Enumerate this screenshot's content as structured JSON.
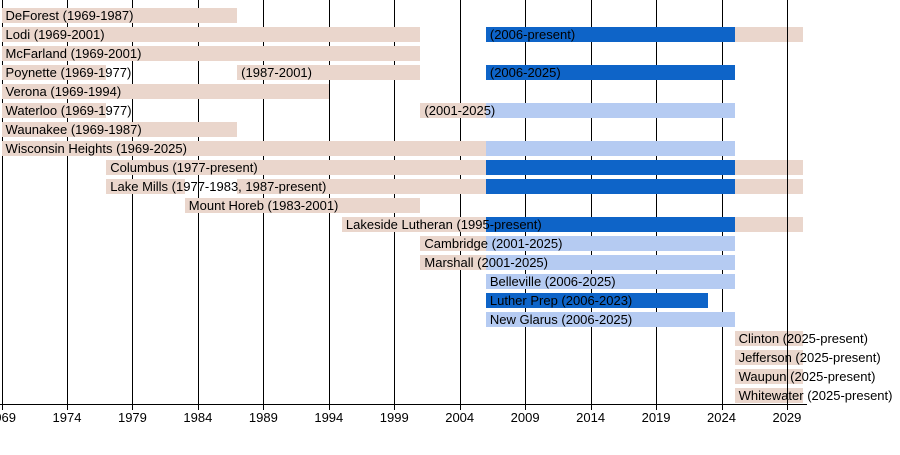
{
  "chart_data": {
    "type": "gantt-timeline",
    "title": "",
    "axis": {
      "unit": "year",
      "start": 1969,
      "axis_end": 2030.5,
      "present_end": 2030.2,
      "ticks": [
        1969,
        1974,
        1979,
        1984,
        1989,
        1994,
        1999,
        2004,
        2009,
        2014,
        2019,
        2024,
        2029
      ],
      "grid": true,
      "tick_labels": [
        "1969",
        "1974",
        "1979",
        "1984",
        "1989",
        "1994",
        "1999",
        "2004",
        "2009",
        "2014",
        "2019",
        "2024",
        "2029"
      ]
    },
    "colors": {
      "tan": "#EAD6CC",
      "darkblue": "#0E64C8",
      "lightblue": "#B5CBF2",
      "grid": "#000000",
      "text": "#000000",
      "background": "#FFFFFF"
    },
    "rows": [
      {
        "name": "DeForest",
        "segments": [
          {
            "start": 1969,
            "end": 1987,
            "color": "tan"
          }
        ],
        "labels": [
          {
            "text": "DeForest (1969-1987)",
            "at": 1969
          }
        ]
      },
      {
        "name": "Lodi",
        "segments": [
          {
            "start": 1969,
            "end": 2001,
            "color": "tan"
          },
          {
            "start": 2006,
            "end": 2025,
            "color": "darkblue"
          },
          {
            "start": 2025,
            "end": 2030.2,
            "color": "tan"
          }
        ],
        "labels": [
          {
            "text": "Lodi (1969-2001)",
            "at": 1969
          },
          {
            "text": "(2006-present)",
            "at": 2006
          }
        ]
      },
      {
        "name": "McFarland",
        "segments": [
          {
            "start": 1969,
            "end": 2001,
            "color": "tan"
          }
        ],
        "labels": [
          {
            "text": "McFarland (1969-2001)",
            "at": 1969
          }
        ]
      },
      {
        "name": "Poynette",
        "segments": [
          {
            "start": 1969,
            "end": 1977,
            "color": "tan"
          },
          {
            "start": 1987,
            "end": 2001,
            "color": "tan"
          },
          {
            "start": 2006,
            "end": 2025,
            "color": "darkblue"
          }
        ],
        "labels": [
          {
            "text": "Poynette (1969-1977)",
            "at": 1969
          },
          {
            "text": "(1987-2001)",
            "at": 1987
          },
          {
            "text": "(2006-2025)",
            "at": 2006
          }
        ]
      },
      {
        "name": "Verona",
        "segments": [
          {
            "start": 1969,
            "end": 1994,
            "color": "tan"
          }
        ],
        "labels": [
          {
            "text": "Verona (1969-1994)",
            "at": 1969
          }
        ]
      },
      {
        "name": "Waterloo",
        "segments": [
          {
            "start": 1969,
            "end": 1977,
            "color": "tan"
          },
          {
            "start": 2001,
            "end": 2006,
            "color": "tan"
          },
          {
            "start": 2006,
            "end": 2025,
            "color": "lightblue"
          }
        ],
        "labels": [
          {
            "text": "Waterloo (1969-1977)",
            "at": 1969
          },
          {
            "text": "(2001-2025)",
            "at": 2001
          }
        ]
      },
      {
        "name": "Waunakee",
        "segments": [
          {
            "start": 1969,
            "end": 1987,
            "color": "tan"
          }
        ],
        "labels": [
          {
            "text": "Waunakee (1969-1987)",
            "at": 1969
          }
        ]
      },
      {
        "name": "Wisconsin Heights",
        "segments": [
          {
            "start": 1969,
            "end": 2006,
            "color": "tan"
          },
          {
            "start": 2006,
            "end": 2025,
            "color": "lightblue"
          }
        ],
        "labels": [
          {
            "text": "Wisconsin Heights (1969-2025)",
            "at": 1969
          }
        ]
      },
      {
        "name": "Columbus",
        "segments": [
          {
            "start": 1977,
            "end": 2006,
            "color": "tan"
          },
          {
            "start": 2006,
            "end": 2025,
            "color": "darkblue"
          },
          {
            "start": 2025,
            "end": 2030.2,
            "color": "tan"
          }
        ],
        "labels": [
          {
            "text": "Columbus (1977-present)",
            "at": 1977
          }
        ]
      },
      {
        "name": "Lake Mills",
        "segments": [
          {
            "start": 1977,
            "end": 1983,
            "color": "tan"
          },
          {
            "start": 1987,
            "end": 2006,
            "color": "tan"
          },
          {
            "start": 2006,
            "end": 2025,
            "color": "darkblue"
          },
          {
            "start": 2025,
            "end": 2030.2,
            "color": "tan"
          }
        ],
        "labels": [
          {
            "text": "Lake Mills (1977-1983, 1987-present)",
            "at": 1977
          }
        ]
      },
      {
        "name": "Mount Horeb",
        "segments": [
          {
            "start": 1983,
            "end": 2001,
            "color": "tan"
          }
        ],
        "labels": [
          {
            "text": "Mount Horeb (1983-2001)",
            "at": 1983
          }
        ]
      },
      {
        "name": "Lakeside Lutheran",
        "segments": [
          {
            "start": 1995,
            "end": 2006,
            "color": "tan"
          },
          {
            "start": 2006,
            "end": 2025,
            "color": "darkblue"
          },
          {
            "start": 2025,
            "end": 2030.2,
            "color": "tan"
          }
        ],
        "labels": [
          {
            "text": "Lakeside Lutheran (1995-present)",
            "at": 1995
          }
        ]
      },
      {
        "name": "Cambridge",
        "segments": [
          {
            "start": 2001,
            "end": 2006,
            "color": "tan"
          },
          {
            "start": 2006,
            "end": 2025,
            "color": "lightblue"
          }
        ],
        "labels": [
          {
            "text": "Cambridge (2001-2025)",
            "at": 2001
          }
        ]
      },
      {
        "name": "Marshall",
        "segments": [
          {
            "start": 2001,
            "end": 2006,
            "color": "tan"
          },
          {
            "start": 2006,
            "end": 2025,
            "color": "lightblue"
          }
        ],
        "labels": [
          {
            "text": "Marshall (2001-2025)",
            "at": 2001
          }
        ]
      },
      {
        "name": "Belleville",
        "segments": [
          {
            "start": 2006,
            "end": 2025,
            "color": "lightblue"
          }
        ],
        "labels": [
          {
            "text": "Belleville (2006-2025)",
            "at": 2006
          }
        ]
      },
      {
        "name": "Luther Prep",
        "segments": [
          {
            "start": 2006,
            "end": 2023,
            "color": "darkblue"
          }
        ],
        "labels": [
          {
            "text": "Luther Prep (2006-2023)",
            "at": 2006
          }
        ]
      },
      {
        "name": "New Glarus",
        "segments": [
          {
            "start": 2006,
            "end": 2025,
            "color": "lightblue"
          }
        ],
        "labels": [
          {
            "text": "New Glarus (2006-2025)",
            "at": 2006
          }
        ]
      },
      {
        "name": "Clinton",
        "segments": [
          {
            "start": 2025,
            "end": 2030.2,
            "color": "tan"
          }
        ],
        "labels": [
          {
            "text": "Clinton (2025-present)",
            "at": 2025
          }
        ]
      },
      {
        "name": "Jefferson",
        "segments": [
          {
            "start": 2025,
            "end": 2030.2,
            "color": "tan"
          }
        ],
        "labels": [
          {
            "text": "Jefferson (2025-present)",
            "at": 2025
          }
        ]
      },
      {
        "name": "Waupun",
        "segments": [
          {
            "start": 2025,
            "end": 2030.2,
            "color": "tan"
          }
        ],
        "labels": [
          {
            "text": "Waupun (2025-present)",
            "at": 2025
          }
        ]
      },
      {
        "name": "Whitewater",
        "segments": [
          {
            "start": 2025,
            "end": 2030.2,
            "color": "tan"
          }
        ],
        "labels": [
          {
            "text": "Whitewater (2025-present)",
            "at": 2025
          }
        ]
      }
    ]
  }
}
